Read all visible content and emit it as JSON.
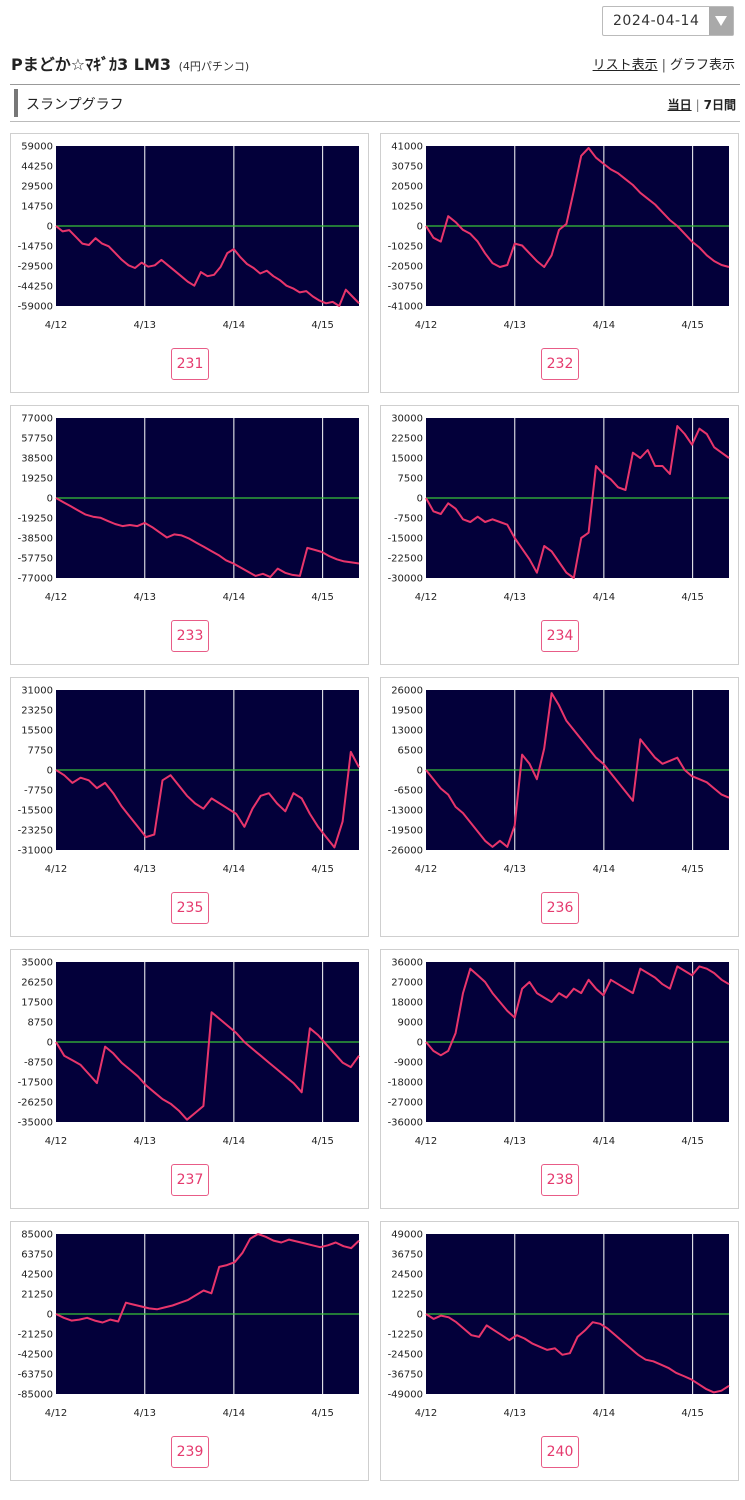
{
  "date_select": {
    "value": "2024-04-14"
  },
  "header": {
    "title": "Pまどか☆ﾏｷﾞｶ3 LM3",
    "subtitle": "(4円パチンコ)",
    "list_view_label": "リスト表示",
    "separator": "|",
    "graph_view_label": "グラフ表示"
  },
  "section": {
    "title": "スランプグラフ",
    "today_label": "当日",
    "separator": "|",
    "week_label": "7日間"
  },
  "colors": {
    "plot_bg": "#03003a",
    "line": "#e8356b",
    "zero_line": "#38c238",
    "grid": "#ffffff",
    "button_border": "#e85c87"
  },
  "x_labels": [
    "4/12",
    "4/13",
    "4/14",
    "4/15"
  ],
  "machines": [
    {
      "number": "231",
      "y_max": 59000,
      "y_ticks": [
        "59000",
        "44250",
        "29500",
        "14750",
        "0",
        "-14750",
        "-29500",
        "-44250",
        "-59000"
      ],
      "values": [
        0,
        -4000,
        -3000,
        -8000,
        -13000,
        -14000,
        -9000,
        -13000,
        -15000,
        -20000,
        -25000,
        -29000,
        -31000,
        -27000,
        -30000,
        -29000,
        -25000,
        -29000,
        -33000,
        -37000,
        -41000,
        -44000,
        -34000,
        -37000,
        -36000,
        -30000,
        -20000,
        -17000,
        -23000,
        -28000,
        -31000,
        -35000,
        -33000,
        -37000,
        -40000,
        -44000,
        -46000,
        -49000,
        -48000,
        -52000,
        -55000,
        -57000,
        -56000,
        -59000,
        -47000,
        -52000,
        -57000
      ]
    },
    {
      "number": "232",
      "y_max": 41000,
      "y_ticks": [
        "41000",
        "30750",
        "20500",
        "10250",
        "0",
        "-10250",
        "-20500",
        "-30750",
        "-41000"
      ],
      "values": [
        0,
        -6000,
        -8000,
        5000,
        2000,
        -2000,
        -4000,
        -8000,
        -14000,
        -19000,
        -21000,
        -20000,
        -9000,
        -10000,
        -14000,
        -18000,
        -21000,
        -15000,
        -2000,
        1000,
        18000,
        36000,
        40000,
        35000,
        32000,
        29000,
        27000,
        24000,
        21000,
        17000,
        14000,
        11000,
        7000,
        3000,
        0,
        -4000,
        -8000,
        -11000,
        -15000,
        -18000,
        -20000,
        -21000
      ]
    },
    {
      "number": "233",
      "y_max": 77000,
      "y_ticks": [
        "77000",
        "57750",
        "38500",
        "19250",
        "0",
        "-19250",
        "-38500",
        "-57750",
        "-77000"
      ],
      "values": [
        0,
        -4000,
        -8000,
        -12000,
        -16000,
        -18000,
        -19000,
        -22000,
        -25000,
        -27000,
        -26000,
        -27000,
        -24000,
        -28000,
        -33000,
        -38000,
        -35000,
        -36000,
        -39000,
        -43000,
        -47000,
        -51000,
        -55000,
        -60000,
        -63000,
        -67000,
        -71000,
        -75000,
        -73000,
        -76000,
        -68000,
        -72000,
        -74000,
        -75000,
        -48000,
        -50000,
        -52000,
        -56000,
        -59000,
        -61000,
        -62000,
        -63000
      ]
    },
    {
      "number": "234",
      "y_max": 30000,
      "y_ticks": [
        "30000",
        "22500",
        "15000",
        "7500",
        "0",
        "-7500",
        "-15000",
        "-22500",
        "-30000"
      ],
      "values": [
        0,
        -5000,
        -6000,
        -2000,
        -4000,
        -8000,
        -9000,
        -7000,
        -9000,
        -8000,
        -9000,
        -10000,
        -15000,
        -19000,
        -23000,
        -28000,
        -18000,
        -20000,
        -24000,
        -28000,
        -30000,
        -15000,
        -13000,
        12000,
        9000,
        7000,
        4000,
        3000,
        17000,
        15000,
        18000,
        12000,
        12000,
        9000,
        27000,
        24000,
        20000,
        26000,
        24000,
        19000,
        17000,
        15000
      ]
    },
    {
      "number": "235",
      "y_max": 31000,
      "y_ticks": [
        "31000",
        "23250",
        "15500",
        "7750",
        "0",
        "-7750",
        "-15500",
        "-23250",
        "-31000"
      ],
      "values": [
        0,
        -2000,
        -5000,
        -3000,
        -4000,
        -7000,
        -5000,
        -9000,
        -14000,
        -18000,
        -22000,
        -26000,
        -25000,
        -4000,
        -2000,
        -6000,
        -10000,
        -13000,
        -15000,
        -11000,
        -13000,
        -15000,
        -17000,
        -22000,
        -15000,
        -10000,
        -9000,
        -13000,
        -16000,
        -9000,
        -11000,
        -17000,
        -22000,
        -26000,
        -30000,
        -20000,
        7000,
        1000
      ]
    },
    {
      "number": "236",
      "y_max": 26000,
      "y_ticks": [
        "26000",
        "19500",
        "13000",
        "6500",
        "0",
        "-6500",
        "-13000",
        "-19500",
        "-26000"
      ],
      "values": [
        0,
        -3000,
        -6000,
        -8000,
        -12000,
        -14000,
        -17000,
        -20000,
        -23000,
        -25000,
        -23000,
        -25000,
        -18000,
        5000,
        2000,
        -3000,
        7000,
        25000,
        21000,
        16000,
        13000,
        10000,
        7000,
        4000,
        2000,
        -1000,
        -4000,
        -7000,
        -10000,
        10000,
        7000,
        4000,
        2000,
        3000,
        4000,
        0,
        -2000,
        -3000,
        -4000,
        -6000,
        -8000,
        -9000
      ]
    },
    {
      "number": "237",
      "y_max": 35000,
      "y_ticks": [
        "35000",
        "26250",
        "17500",
        "8750",
        "0",
        "-8750",
        "-17500",
        "-26250",
        "-35000"
      ],
      "values": [
        0,
        -6000,
        -8000,
        -10000,
        -14000,
        -18000,
        -2000,
        -5000,
        -9000,
        -12000,
        -15000,
        -19000,
        -22000,
        -25000,
        -27000,
        -30000,
        -34000,
        -31000,
        -28000,
        13000,
        10000,
        7000,
        4000,
        0,
        -3000,
        -6000,
        -9000,
        -12000,
        -15000,
        -18000,
        -22000,
        6000,
        3000,
        -1000,
        -5000,
        -9000,
        -11000,
        -6000
      ]
    },
    {
      "number": "238",
      "y_max": 36000,
      "y_ticks": [
        "36000",
        "27000",
        "18000",
        "9000",
        "0",
        "-9000",
        "-18000",
        "-27000",
        "-36000"
      ],
      "values": [
        0,
        -4000,
        -6000,
        -4000,
        4000,
        22000,
        33000,
        30000,
        27000,
        22000,
        18000,
        14000,
        11000,
        24000,
        27000,
        22000,
        20000,
        18000,
        22000,
        20000,
        24000,
        22000,
        28000,
        24000,
        21000,
        28000,
        26000,
        24000,
        22000,
        33000,
        31000,
        29000,
        26000,
        24000,
        34000,
        32000,
        30000,
        34000,
        33000,
        31000,
        28000,
        26000
      ]
    },
    {
      "number": "239",
      "y_max": 85000,
      "y_ticks": [
        "85000",
        "63750",
        "42500",
        "21250",
        "0",
        "-21250",
        "-42500",
        "-63750",
        "-85000"
      ],
      "values": [
        0,
        -4000,
        -7000,
        -6000,
        -4000,
        -7000,
        -9000,
        -6000,
        -8000,
        12000,
        10000,
        8000,
        6000,
        5000,
        7000,
        9000,
        12000,
        15000,
        20000,
        25000,
        22000,
        50000,
        52000,
        55000,
        65000,
        80000,
        85000,
        82000,
        78000,
        76000,
        79000,
        77000,
        75000,
        73000,
        71000,
        73000,
        76000,
        72000,
        70000,
        78000
      ]
    },
    {
      "number": "240",
      "y_max": 49000,
      "y_ticks": [
        "49000",
        "36750",
        "24500",
        "12250",
        "0",
        "-12250",
        "-24500",
        "-36750",
        "-49000"
      ],
      "values": [
        0,
        -3000,
        -1000,
        -2000,
        -5000,
        -9000,
        -13000,
        -14000,
        -7000,
        -10000,
        -13000,
        -16000,
        -13000,
        -15000,
        -18000,
        -20000,
        -22000,
        -21000,
        -25000,
        -24000,
        -14000,
        -10000,
        -5000,
        -6000,
        -9000,
        -13000,
        -17000,
        -21000,
        -25000,
        -28000,
        -29000,
        -31000,
        -33000,
        -36000,
        -38000,
        -40000,
        -43000,
        -46000,
        -48000,
        -47000,
        -44000
      ]
    }
  ]
}
